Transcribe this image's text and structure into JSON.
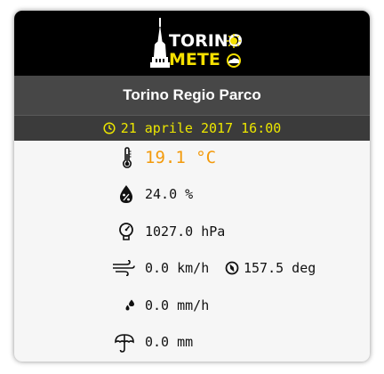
{
  "header": {
    "logo_text_torino_1": "TORIN",
    "logo_text_torino_2": "O",
    "logo_text_meteo": "METE"
  },
  "station": {
    "name": "Torino Regio Parco"
  },
  "timestamp": {
    "text": "21 aprile 2017 16:00"
  },
  "readings": {
    "temperature": "19.1 °C",
    "humidity": "24.0 %",
    "pressure": "1027.0 hPa",
    "wind_speed": "0.0 km/h",
    "wind_direction": "157.5 deg",
    "rain_rate": "0.0 mm/h",
    "rain_total": "0.0 mm"
  },
  "colors": {
    "accent_yellow": "#f5e000",
    "temperature": "#f39a0b",
    "header_bg": "#000000",
    "station_bg": "#474747"
  },
  "icons": {
    "temperature": "thermometer-icon",
    "humidity": "humidity-drop-icon",
    "pressure": "barometer-icon",
    "wind": "wind-icon",
    "wind_direction": "compass-icon",
    "rain_rate": "rain-drops-icon",
    "rain_total": "umbrella-icon",
    "time": "clock-icon"
  }
}
